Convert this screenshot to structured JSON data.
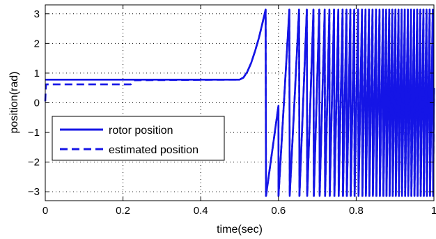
{
  "chart_data": {
    "type": "line",
    "xlabel": "time(sec)",
    "ylabel": "position(rad)",
    "xlim": [
      0,
      1
    ],
    "ylim": [
      -3.3,
      3.3
    ],
    "xticks": [
      0,
      0.2,
      0.4,
      0.6,
      0.8,
      1
    ],
    "xtick_labels": [
      "0",
      "0.2",
      "0.4",
      "0.6",
      "0.8",
      "1"
    ],
    "yticks": [
      -3,
      -2,
      -1,
      0,
      1,
      2,
      3
    ],
    "ytick_labels": [
      "−3",
      "−2",
      "−1",
      "0",
      "1",
      "2",
      "3"
    ],
    "grid": true,
    "legend_position": "lower-left",
    "series_color": "#1515e6",
    "series": [
      {
        "name": "rotor position",
        "style": "solid",
        "x": [
          0,
          0.5,
          0.51,
          0.52,
          0.53,
          0.54,
          0.55,
          0.56,
          0.567,
          0.568,
          0.6,
          0.6001,
          0.628,
          0.629,
          0.653,
          0.654,
          0.673,
          0.674,
          0.69,
          0.691,
          0.705,
          0.706,
          0.719,
          0.72,
          0.731,
          0.732,
          0.743,
          0.744,
          0.754,
          0.755,
          0.765,
          0.766,
          0.775,
          0.776,
          0.785,
          0.786,
          0.795,
          0.796,
          0.805,
          0.806,
          0.815,
          0.816,
          0.824,
          0.825,
          0.833,
          0.834,
          0.842,
          0.843,
          0.851,
          0.852,
          0.86,
          0.861,
          0.869,
          0.87,
          0.877,
          0.878,
          0.885,
          0.886,
          0.893,
          0.894,
          0.901,
          0.902,
          0.909,
          0.91,
          0.917,
          0.918,
          0.925,
          0.926,
          0.933,
          0.934,
          0.941,
          0.942,
          0.949,
          0.95,
          0.957,
          0.958,
          0.965,
          0.966,
          0.973,
          0.974,
          0.981,
          0.982,
          0.989,
          0.99,
          0.997,
          0.998,
          1
        ],
        "y": [
          0.78,
          0.78,
          0.85,
          1.05,
          1.35,
          1.75,
          2.2,
          2.75,
          3.14,
          -3.14,
          -0.1,
          -3.14,
          3.14,
          -3.14,
          3.14,
          -3.14,
          3.14,
          -3.14,
          3.14,
          -3.14,
          3.14,
          -3.14,
          3.14,
          -3.14,
          3.14,
          -3.14,
          3.14,
          -3.14,
          3.14,
          -3.14,
          3.14,
          -3.14,
          3.14,
          -3.14,
          3.14,
          -3.14,
          3.14,
          -3.14,
          3.14,
          -3.14,
          3.14,
          -3.14,
          3.14,
          -3.14,
          3.14,
          -3.14,
          3.14,
          -3.14,
          3.14,
          -3.14,
          3.14,
          -3.14,
          3.14,
          -3.14,
          3.14,
          -3.14,
          3.14,
          -3.14,
          3.14,
          -3.14,
          3.14,
          -3.14,
          3.14,
          -3.14,
          3.14,
          -3.14,
          3.14,
          -3.14,
          3.14,
          -3.14,
          3.14,
          -3.14,
          3.14,
          -3.14,
          3.14,
          -3.14,
          3.14,
          -3.14,
          3.14,
          -3.14,
          3.14,
          -3.14,
          3.14,
          -3.14,
          3.14,
          -3.14,
          0.5
        ]
      },
      {
        "name": "estimated position",
        "style": "dashed",
        "x": [
          0,
          0.001,
          0.002,
          0.22,
          0.23,
          0.5,
          0.51,
          0.52,
          0.53,
          0.54,
          0.55,
          0.56,
          0.567,
          0.568,
          0.6,
          0.6001,
          0.628,
          0.629,
          0.653,
          0.654,
          0.673,
          0.674,
          0.69,
          0.691,
          0.705,
          0.706,
          0.719,
          0.72,
          0.731,
          0.732,
          0.743,
          0.744,
          0.754,
          0.755,
          0.765,
          0.766,
          0.775,
          0.776,
          0.785,
          0.786,
          0.795,
          0.796,
          0.805,
          0.806,
          0.815,
          0.816,
          0.824,
          0.825,
          0.833,
          0.834,
          0.842,
          0.843,
          0.851,
          0.852,
          0.86,
          0.861,
          0.869,
          0.87,
          0.877,
          0.878,
          0.885,
          0.886,
          0.893,
          0.894,
          0.901,
          0.902,
          0.909,
          0.91,
          0.917,
          0.918,
          0.925,
          0.926,
          0.933,
          0.934,
          0.941,
          0.942,
          0.949,
          0.95,
          0.957,
          0.958,
          0.965,
          0.966,
          0.973,
          0.974,
          0.981,
          0.982,
          0.989,
          0.99,
          0.997,
          0.998,
          1
        ],
        "y": [
          0.05,
          0.4,
          0.62,
          0.62,
          0.76,
          0.78,
          0.85,
          1.05,
          1.35,
          1.75,
          2.2,
          2.75,
          3.14,
          -3.14,
          -0.1,
          -3.14,
          3.14,
          -3.14,
          3.14,
          -3.14,
          3.14,
          -3.14,
          3.14,
          -3.14,
          3.14,
          -3.14,
          3.14,
          -3.14,
          3.14,
          -3.14,
          3.14,
          -3.14,
          3.14,
          -3.14,
          3.14,
          -3.14,
          3.14,
          -3.14,
          3.14,
          -3.14,
          3.14,
          -3.14,
          3.14,
          -3.14,
          3.14,
          -3.14,
          3.14,
          -3.14,
          3.14,
          -3.14,
          3.14,
          -3.14,
          3.14,
          -3.14,
          3.14,
          -3.14,
          3.14,
          -3.14,
          3.14,
          -3.14,
          3.14,
          -3.14,
          3.14,
          -3.14,
          3.14,
          -3.14,
          3.14,
          -3.14,
          3.14,
          -3.14,
          3.14,
          -3.14,
          3.14,
          -3.14,
          3.14,
          -3.14,
          3.14,
          -3.14,
          3.14,
          -3.14,
          3.14,
          -3.14,
          3.14,
          -3.14,
          3.14,
          -3.14,
          3.14,
          -3.14,
          3.14,
          -3.14,
          0.5
        ]
      }
    ]
  }
}
